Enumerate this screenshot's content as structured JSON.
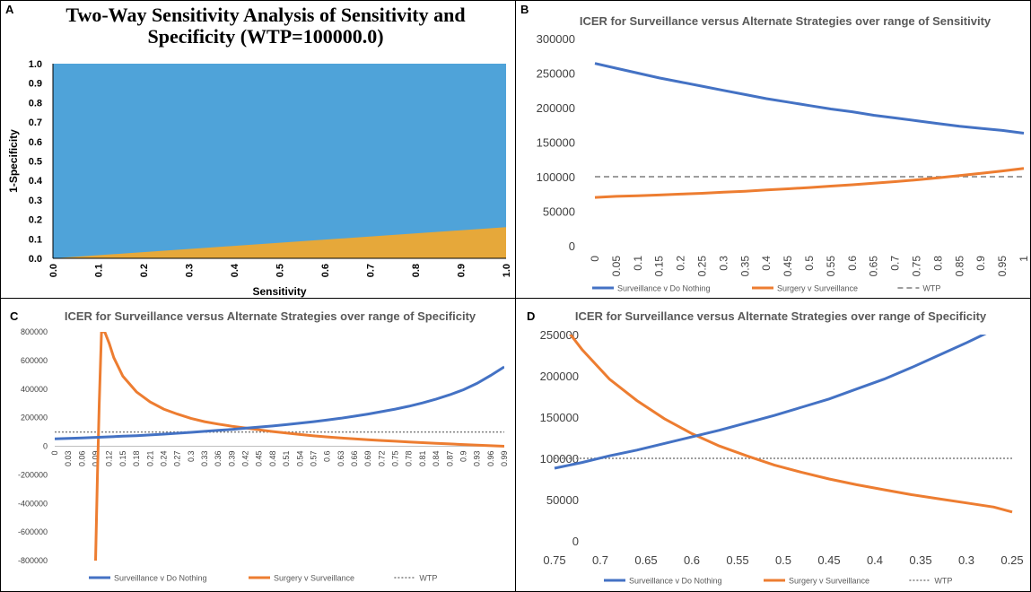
{
  "chart_data": [
    {
      "id": "A",
      "type": "area",
      "panel_label": "A",
      "title": "Two-Way Sensitivity Analysis of Sensitivity and Specificity (WTP=100000.0)",
      "xlabel": "Sensitivity",
      "ylabel": "1-Specificity",
      "xlim": [
        0,
        1
      ],
      "ylim": [
        0,
        1
      ],
      "xticks": [
        "0.0",
        "0.1",
        "0.2",
        "0.3",
        "0.4",
        "0.5",
        "0.6",
        "0.7",
        "0.8",
        "0.9",
        "1.0"
      ],
      "yticks": [
        "0.0",
        "0.1",
        "0.2",
        "0.3",
        "0.4",
        "0.5",
        "0.6",
        "0.7",
        "0.8",
        "0.9",
        "1.0"
      ],
      "boundary": {
        "x": [
          0,
          1
        ],
        "y": [
          0,
          0.16
        ]
      },
      "colors": {
        "upper": "#4fa3d9",
        "lower": "#e6a83a"
      }
    },
    {
      "id": "B",
      "type": "line",
      "panel_label": "B",
      "title": "ICER for Surveillance versus Alternate Strategies over range of Sensitivity",
      "xlabel": "",
      "ylabel": "",
      "categories": [
        "0",
        "0.05",
        "0.1",
        "0.15",
        "0.2",
        "0.25",
        "0.3",
        "0.35",
        "0.4",
        "0.45",
        "0.5",
        "0.55",
        "0.6",
        "0.65",
        "0.7",
        "0.75",
        "0.8",
        "0.85",
        "0.9",
        "0.95",
        "1"
      ],
      "ylim": [
        0,
        300000
      ],
      "yticks": [
        "0",
        "50000",
        "100000",
        "150000",
        "200000",
        "250000",
        "300000"
      ],
      "series": [
        {
          "name": "Surveillance v Do Nothing",
          "color": "#4472c4",
          "style": "solid",
          "values": [
            264000,
            257000,
            250000,
            243000,
            237000,
            231000,
            225000,
            219000,
            213000,
            208000,
            203000,
            198000,
            194000,
            189000,
            185000,
            181000,
            177000,
            173000,
            170000,
            167000,
            163000
          ]
        },
        {
          "name": "Surgery v Surveillance",
          "color": "#ed7d31",
          "style": "solid",
          "values": [
            70000,
            71500,
            72500,
            73500,
            74800,
            76000,
            77500,
            79000,
            80800,
            82500,
            84300,
            86300,
            88300,
            90500,
            92800,
            95500,
            98500,
            101500,
            104800,
            108300,
            112000
          ]
        },
        {
          "name": "WTP",
          "color": "#7f7f7f",
          "style": "dashed",
          "values": [
            100000,
            100000,
            100000,
            100000,
            100000,
            100000,
            100000,
            100000,
            100000,
            100000,
            100000,
            100000,
            100000,
            100000,
            100000,
            100000,
            100000,
            100000,
            100000,
            100000,
            100000
          ]
        }
      ]
    },
    {
      "id": "C",
      "type": "line",
      "panel_label": "C",
      "title": "ICER for Surveillance versus Alternate Strategies over range of Specificity",
      "xlabel": "",
      "ylabel": "",
      "categories": [
        "0",
        "0.03",
        "0.06",
        "0.09",
        "0.12",
        "0.15",
        "0.18",
        "0.21",
        "0.24",
        "0.27",
        "0.3",
        "0.33",
        "0.36",
        "0.39",
        "0.42",
        "0.45",
        "0.48",
        "0.51",
        "0.54",
        "0.57",
        "0.6",
        "0.63",
        "0.66",
        "0.69",
        "0.72",
        "0.75",
        "0.78",
        "0.81",
        "0.84",
        "0.87",
        "0.9",
        "0.93",
        "0.96",
        "0.99"
      ],
      "ylim": [
        -800000,
        800000
      ],
      "yticks": [
        "-800000",
        "-600000",
        "-400000",
        "-200000",
        "0",
        "200000",
        "400000",
        "600000",
        "800000"
      ],
      "series": [
        {
          "name": "Surveillance v Do Nothing",
          "color": "#4472c4",
          "style": "solid",
          "x": [
            0,
            0.03,
            0.06,
            0.09,
            0.12,
            0.15,
            0.18,
            0.21,
            0.24,
            0.27,
            0.3,
            0.33,
            0.36,
            0.39,
            0.42,
            0.45,
            0.48,
            0.51,
            0.54,
            0.57,
            0.6,
            0.63,
            0.66,
            0.69,
            0.72,
            0.75,
            0.78,
            0.81,
            0.84,
            0.87,
            0.9,
            0.93,
            0.96,
            0.99
          ],
          "values": [
            52000,
            55000,
            58000,
            62000,
            66000,
            70000,
            74000,
            79000,
            85000,
            91000,
            97000,
            104000,
            111000,
            118000,
            126000,
            134000,
            142000,
            151000,
            161000,
            172000,
            184000,
            196000,
            210000,
            225000,
            242000,
            260000,
            280000,
            303000,
            330000,
            360000,
            395000,
            440000,
            495000,
            555000
          ]
        },
        {
          "name": "Surgery v Surveillance",
          "color": "#ed7d31",
          "style": "solid",
          "x": [
            0.09,
            0.094,
            0.098,
            0.103,
            0.11,
            0.12,
            0.13,
            0.15,
            0.18,
            0.21,
            0.24,
            0.27,
            0.3,
            0.33,
            0.36,
            0.39,
            0.42,
            0.45,
            0.48,
            0.51,
            0.54,
            0.57,
            0.6,
            0.63,
            0.66,
            0.69,
            0.72,
            0.75,
            0.78,
            0.81,
            0.84,
            0.87,
            0.9,
            0.93,
            0.96,
            0.99
          ],
          "values": [
            -800000,
            -200000,
            300000,
            800000,
            800000,
            720000,
            620000,
            490000,
            380000,
            310000,
            260000,
            225000,
            195000,
            172000,
            155000,
            140000,
            128000,
            115000,
            103000,
            92000,
            82000,
            73000,
            65000,
            58000,
            52000,
            46000,
            40000,
            35000,
            30000,
            25000,
            20000,
            16000,
            12000,
            8000,
            4000,
            0
          ]
        },
        {
          "name": "WTP",
          "color": "#7f7f7f",
          "style": "dotted",
          "x": [
            0,
            0.99
          ],
          "values": [
            100000,
            100000
          ]
        }
      ]
    },
    {
      "id": "D",
      "type": "line",
      "panel_label": "D",
      "title": "ICER for Surveillance versus Alternate Strategies over range of Specificity",
      "xlabel": "",
      "ylabel": "",
      "xlim": [
        0.75,
        0.25
      ],
      "xticks": [
        "0.75",
        "0.7",
        "0.65",
        "0.6",
        "0.55",
        "0.5",
        "0.45",
        "0.4",
        "0.35",
        "0.3",
        "0.25"
      ],
      "ylim": [
        0,
        250000
      ],
      "yticks": [
        "0",
        "50000",
        "100000",
        "150000",
        "200000",
        "250000"
      ],
      "series": [
        {
          "name": "Surveillance v Do Nothing",
          "color": "#4472c4",
          "style": "solid",
          "x": [
            0.75,
            0.72,
            0.69,
            0.66,
            0.63,
            0.6,
            0.57,
            0.54,
            0.51,
            0.48,
            0.45,
            0.42,
            0.39,
            0.36,
            0.33,
            0.3,
            0.272
          ],
          "values": [
            88000,
            95000,
            103000,
            110000,
            118000,
            126000,
            134000,
            143000,
            152000,
            162000,
            172000,
            184000,
            196000,
            210000,
            225000,
            240000,
            255000
          ]
        },
        {
          "name": "Surgery v Surveillance",
          "color": "#ed7d31",
          "style": "solid",
          "x": [
            0.736,
            0.72,
            0.69,
            0.66,
            0.63,
            0.6,
            0.57,
            0.54,
            0.51,
            0.48,
            0.45,
            0.42,
            0.39,
            0.36,
            0.33,
            0.3,
            0.27,
            0.25
          ],
          "values": [
            255000,
            232000,
            196000,
            170000,
            148000,
            130000,
            115000,
            103000,
            92000,
            83000,
            75000,
            68000,
            62000,
            56000,
            51000,
            46000,
            41000,
            35000
          ]
        },
        {
          "name": "WTP",
          "color": "#7f7f7f",
          "style": "dotted",
          "x": [
            0.75,
            0.25
          ],
          "values": [
            100000,
            100000
          ]
        }
      ]
    }
  ]
}
